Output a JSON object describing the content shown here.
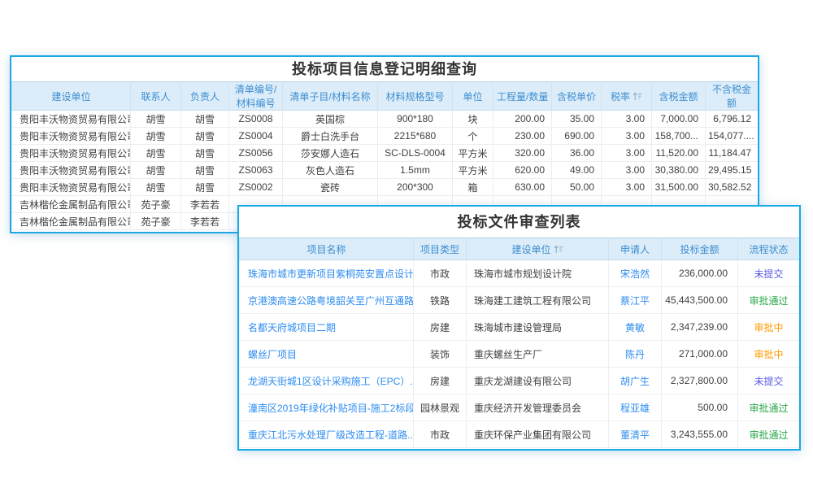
{
  "colors": {
    "window_border": "#1ba9e4",
    "header_bg": "#dcedf9",
    "header_text": "#3e8ed0",
    "link": "#2d8cf0"
  },
  "icons": {
    "sort": "sort-arrows"
  },
  "back_window": {
    "title": "投标项目信息登记明细查询",
    "columns": [
      "建设单位",
      "联系人",
      "负责人",
      "清单编号/材料编号",
      "清单子目/材料名称",
      "材料规格型号",
      "单位",
      "工程量/数量",
      "含税单价",
      "税率",
      "含税金额",
      "不含税金额"
    ],
    "rows": [
      {
        "company": "贵阳丰沃物资贸易有限公司",
        "contact": "胡雪",
        "manager": "胡雪",
        "code": "ZS0008",
        "name": "英国棕",
        "spec": "900*180",
        "unit": "块",
        "qty": "200.00",
        "price": "35.00",
        "tax": "3.00",
        "amount": "7,000.00",
        "net": "6,796.12"
      },
      {
        "company": "贵阳丰沃物资贸易有限公司",
        "contact": "胡雪",
        "manager": "胡雪",
        "code": "ZS0004",
        "name": "爵士白洗手台",
        "spec": "2215*680",
        "unit": "个",
        "qty": "230.00",
        "price": "690.00",
        "tax": "3.00",
        "amount": "158,700...",
        "net": "154,077...."
      },
      {
        "company": "贵阳丰沃物资贸易有限公司",
        "contact": "胡雪",
        "manager": "胡雪",
        "code": "ZS0056",
        "name": "莎安娜人造石",
        "spec": "SC-DLS-0004",
        "unit": "平方米",
        "qty": "320.00",
        "price": "36.00",
        "tax": "3.00",
        "amount": "11,520.00",
        "net": "11,184.47"
      },
      {
        "company": "贵阳丰沃物资贸易有限公司",
        "contact": "胡雪",
        "manager": "胡雪",
        "code": "ZS0063",
        "name": "灰色人造石",
        "spec": "1.5mm",
        "unit": "平方米",
        "qty": "620.00",
        "price": "49.00",
        "tax": "3.00",
        "amount": "30,380.00",
        "net": "29,495.15"
      },
      {
        "company": "贵阳丰沃物资贸易有限公司",
        "contact": "胡雪",
        "manager": "胡雪",
        "code": "ZS0002",
        "name": "瓷砖",
        "spec": "200*300",
        "unit": "箱",
        "qty": "630.00",
        "price": "50.00",
        "tax": "3.00",
        "amount": "31,500.00",
        "net": "30,582.52"
      },
      {
        "company": "吉林楷伦金属制品有限公司",
        "contact": "苑子豪",
        "manager": "李若若",
        "code": "",
        "name": "",
        "spec": "",
        "unit": "",
        "qty": "",
        "price": "",
        "tax": "",
        "amount": "",
        "net": ""
      },
      {
        "company": "吉林楷伦金属制品有限公司",
        "contact": "苑子豪",
        "manager": "李若若",
        "code": "",
        "name": "",
        "spec": "",
        "unit": "",
        "qty": "",
        "price": "",
        "tax": "",
        "amount": "",
        "net": ""
      }
    ]
  },
  "front_window": {
    "title": "投标文件审查列表",
    "columns": [
      "项目名称",
      "项目类型",
      "建设单位",
      "申请人",
      "投标金额",
      "流程状态"
    ],
    "status_colors": {
      "未提交": "#5b5be6",
      "审批通过": "#28a749",
      "审批中": "#ff9900"
    },
    "rows": [
      {
        "project": "珠海市城市更新项目紫桐苑安置点设计...",
        "type": "市政",
        "company": "珠海市城市规划设计院",
        "applicant": "宋浩然",
        "amount": "236,000.00",
        "status": "未提交"
      },
      {
        "project": "京港澳高速公路粤境韶关至广州互通路...",
        "type": "铁路",
        "company": "珠海建工建筑工程有限公司",
        "applicant": "蔡江平",
        "amount": "45,443,500.00",
        "status": "审批通过"
      },
      {
        "project": "名都天府城项目二期",
        "type": "房建",
        "company": "珠海城市建设管理局",
        "applicant": "黄敏",
        "amount": "2,347,239.00",
        "status": "审批中"
      },
      {
        "project": "螺丝厂项目",
        "type": "装饰",
        "company": "重庆螺丝生产厂",
        "applicant": "陈丹",
        "amount": "271,000.00",
        "status": "审批中"
      },
      {
        "project": "龙湖天街城1区设计采购施工（EPC）...",
        "type": "房建",
        "company": "重庆龙湖建设有限公司",
        "applicant": "胡广生",
        "amount": "2,327,800.00",
        "status": "未提交"
      },
      {
        "project": "潼南区2019年绿化补贴项目-施工2标段",
        "type": "园林景观",
        "company": "重庆经济开发管理委员会",
        "applicant": "程亚雄",
        "amount": "500.00",
        "status": "审批通过"
      },
      {
        "project": "重庆江北污水处理厂级改造工程-道路...",
        "type": "市政",
        "company": "重庆环保产业集团有限公司",
        "applicant": "董清平",
        "amount": "3,243,555.00",
        "status": "审批通过"
      }
    ]
  }
}
